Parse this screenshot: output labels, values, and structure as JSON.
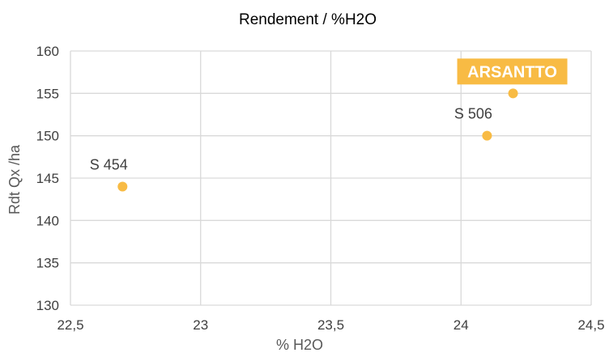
{
  "chart_data": {
    "type": "scatter",
    "title": "Rendement  / %H2O",
    "xlabel": "% H2O",
    "ylabel": "Rdt Qx /ha",
    "xlim": [
      22.5,
      24.5
    ],
    "ylim": [
      130,
      160
    ],
    "x_ticks": [
      22.5,
      23,
      23.5,
      24,
      24.5
    ],
    "x_tick_labels": [
      "22,5",
      "23",
      "23,5",
      "24",
      "24,5"
    ],
    "y_ticks": [
      130,
      135,
      140,
      145,
      150,
      155,
      160
    ],
    "y_tick_labels": [
      "130",
      "135",
      "140",
      "145",
      "150",
      "155",
      "160"
    ],
    "grid": true,
    "points": [
      {
        "label": "S 454",
        "x": 22.7,
        "y": 144,
        "highlight": false
      },
      {
        "label": "S 506",
        "x": 24.1,
        "y": 150,
        "highlight": false
      },
      {
        "label": "ARSANTTO",
        "x": 24.2,
        "y": 155,
        "highlight": true
      }
    ],
    "colors": {
      "marker": "#f8bb44",
      "highlight_box": "#f8bb44",
      "highlight_text": "#ffffff",
      "grid": "#d9d9d9",
      "text": "#404040",
      "title": "#000000"
    }
  }
}
